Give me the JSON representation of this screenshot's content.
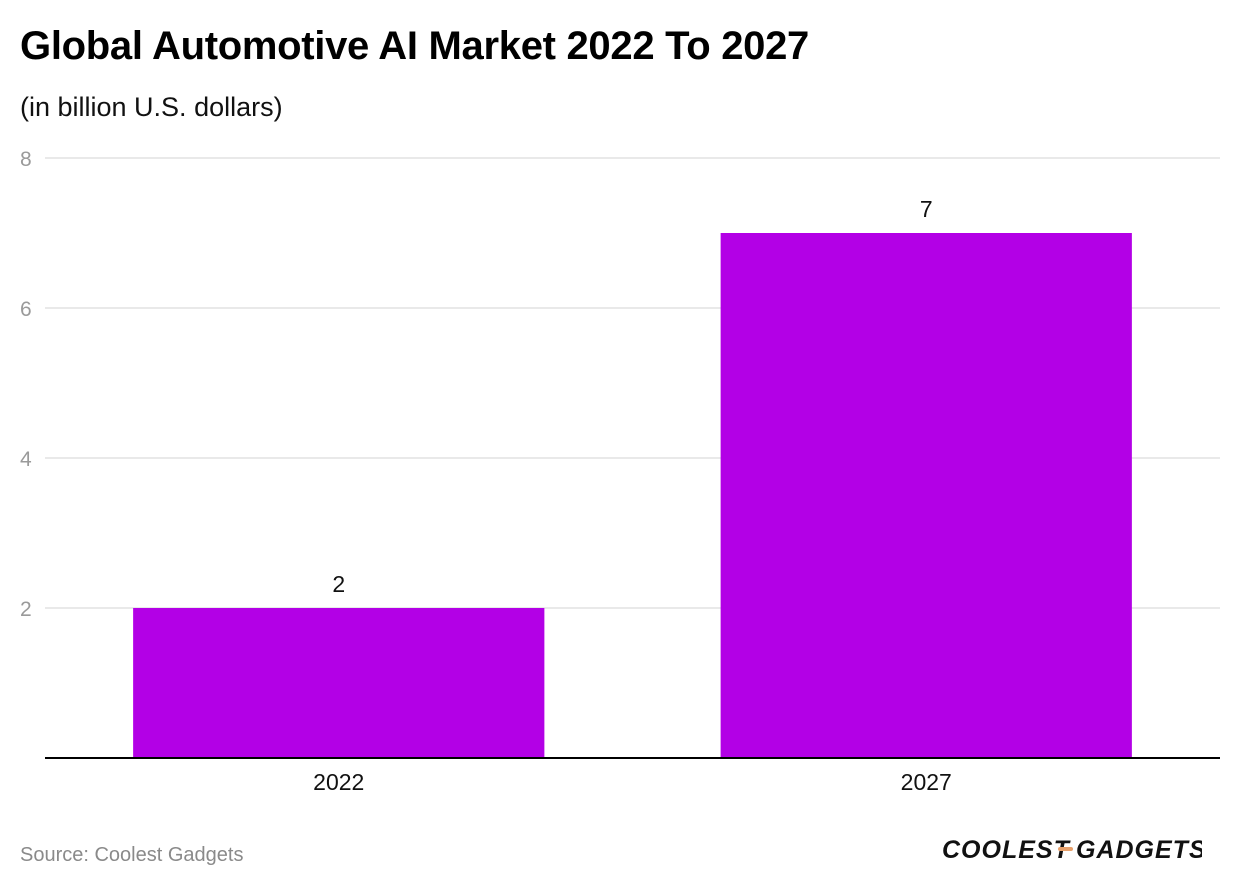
{
  "header": {
    "title": "Global Automotive AI Market 2022 To 2027",
    "subtitle": "(in billion U.S. dollars)"
  },
  "footer": {
    "source": "Source: Coolest Gadgets",
    "logo_text_left": "COOLEST",
    "logo_text_right": "GADGETS"
  },
  "colors": {
    "bar": "#b300e6",
    "grid": "#e2e2e2",
    "axis": "#000000",
    "tick_label": "#9a9a9a",
    "logo_dash": "#e8a06a"
  },
  "chart_data": {
    "type": "bar",
    "title": "Global Automotive AI Market 2022 To 2027",
    "subtitle": "(in billion U.S. dollars)",
    "xlabel": "",
    "ylabel": "",
    "categories": [
      "2022",
      "2027"
    ],
    "values": [
      2,
      7
    ],
    "data_labels": [
      "2",
      "7"
    ],
    "ylim": [
      0,
      8
    ],
    "yticks": [
      2,
      4,
      6,
      8
    ],
    "grid": true,
    "legend": "none"
  }
}
